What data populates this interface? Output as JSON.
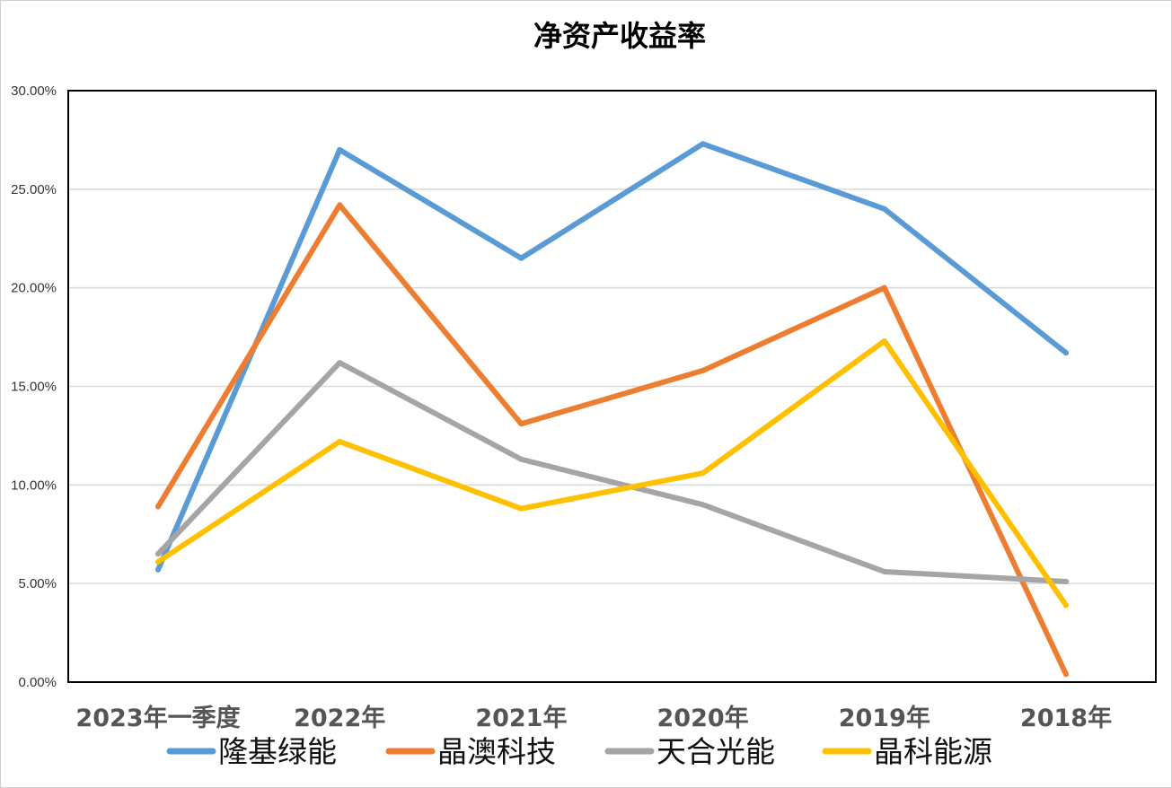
{
  "chart_data": {
    "type": "line",
    "title": "净资产收益率",
    "xlabel": "",
    "ylabel": "",
    "categories": [
      "2023年一季度",
      "2022年",
      "2021年",
      "2020年",
      "2019年",
      "2018年"
    ],
    "ylim": [
      0,
      30
    ],
    "yticks": [
      "0.00%",
      "5.00%",
      "10.00%",
      "15.00%",
      "20.00%",
      "25.00%",
      "30.00%"
    ],
    "grid": true,
    "legend_position": "bottom",
    "series": [
      {
        "name": "隆基绿能",
        "color": "#5B9BD5",
        "values": [
          5.7,
          27.0,
          21.5,
          27.3,
          24.0,
          16.7
        ]
      },
      {
        "name": "晶澳科技",
        "color": "#ED7D31",
        "values": [
          8.9,
          24.2,
          13.1,
          15.8,
          20.0,
          0.4
        ]
      },
      {
        "name": "天合光能",
        "color": "#A5A5A5",
        "values": [
          6.5,
          16.2,
          11.3,
          9.0,
          5.6,
          5.1
        ]
      },
      {
        "name": "晶科能源",
        "color": "#FFC000",
        "values": [
          6.1,
          12.2,
          8.8,
          10.6,
          17.3,
          3.9
        ]
      }
    ]
  }
}
